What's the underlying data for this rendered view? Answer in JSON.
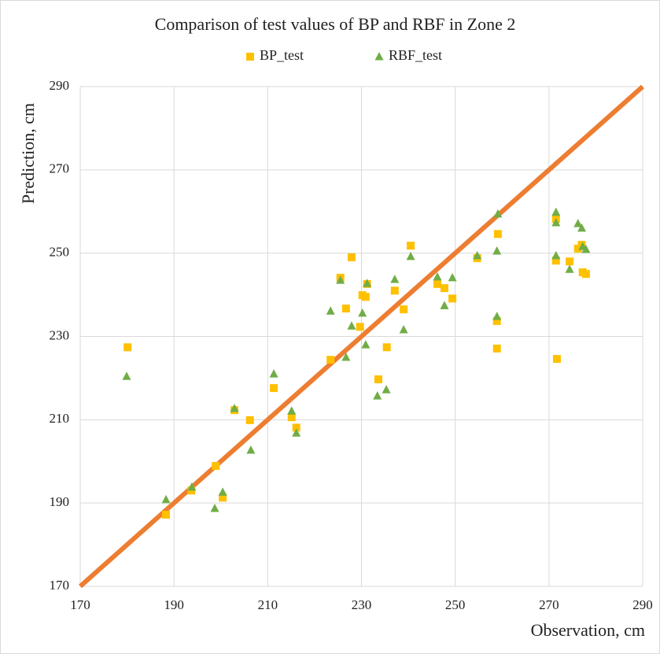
{
  "chart_data": {
    "type": "scatter",
    "title": "Comparison of test values of BP and RBF in Zone 2",
    "x_label": "Observation, cm",
    "y_label": "Prediction, cm",
    "xlim": [
      170,
      290
    ],
    "xticks": [
      170,
      190,
      210,
      230,
      250,
      270,
      290
    ],
    "ylim": [
      170,
      290
    ],
    "yticks": [
      170,
      190,
      210,
      230,
      250,
      270,
      290
    ],
    "grid": true,
    "legend": "top",
    "identity_line": {
      "x": [
        170,
        290
      ],
      "values": [
        170,
        290
      ],
      "color": "#ed7d31"
    },
    "series": [
      {
        "name": "BP_test",
        "color": "#ffc000",
        "marker": "square",
        "x": [
          180.1,
          188.3,
          193.7,
          198.9,
          202.9,
          200.4,
          206.2,
          211.3,
          215.1,
          216.1,
          223.4,
          225.5,
          226.7,
          227.9,
          229.7,
          230.2,
          230.9,
          231.2,
          233.6,
          235.4,
          237.1,
          239.0,
          240.5,
          246.2,
          247.7,
          249.4,
          254.7,
          259.1,
          258.9,
          258.9,
          271.5,
          271.5,
          271.7,
          274.4,
          276.2,
          277.0,
          277.2,
          277.9
        ],
        "values": [
          227.4,
          187.2,
          193.0,
          198.9,
          212.3,
          191.3,
          209.9,
          217.6,
          210.6,
          208.1,
          224.4,
          244.1,
          236.7,
          249.0,
          232.3,
          239.9,
          239.5,
          242.6,
          219.7,
          227.4,
          241.0,
          236.5,
          251.8,
          242.6,
          241.6,
          239.1,
          248.8,
          254.6,
          233.7,
          227.1,
          258.2,
          248.2,
          224.6,
          248.0,
          251.1,
          252.0,
          245.4,
          245.0
        ]
      },
      {
        "name": "RBF_test",
        "color": "#70ad47",
        "marker": "triangle",
        "x": [
          179.9,
          188.3,
          193.8,
          198.7,
          202.9,
          200.4,
          206.4,
          211.3,
          215.1,
          216.1,
          223.4,
          225.5,
          226.7,
          227.9,
          230.2,
          230.9,
          231.2,
          233.4,
          235.3,
          237.1,
          239.0,
          240.5,
          246.2,
          247.7,
          249.4,
          254.7,
          259.1,
          258.9,
          258.9,
          271.5,
          271.5,
          271.5,
          274.4,
          276.2,
          277.0,
          277.2,
          277.9
        ],
        "values": [
          220.4,
          190.8,
          193.8,
          188.7,
          212.7,
          192.6,
          202.7,
          221.0,
          212.1,
          206.8,
          236.1,
          243.5,
          225.0,
          232.5,
          235.6,
          228.0,
          242.7,
          215.7,
          217.2,
          243.7,
          231.6,
          249.2,
          244.3,
          237.4,
          244.1,
          249.4,
          259.4,
          250.5,
          234.8,
          259.8,
          257.3,
          249.4,
          246.1,
          257.1,
          256.0,
          251.6,
          250.9
        ]
      }
    ]
  }
}
